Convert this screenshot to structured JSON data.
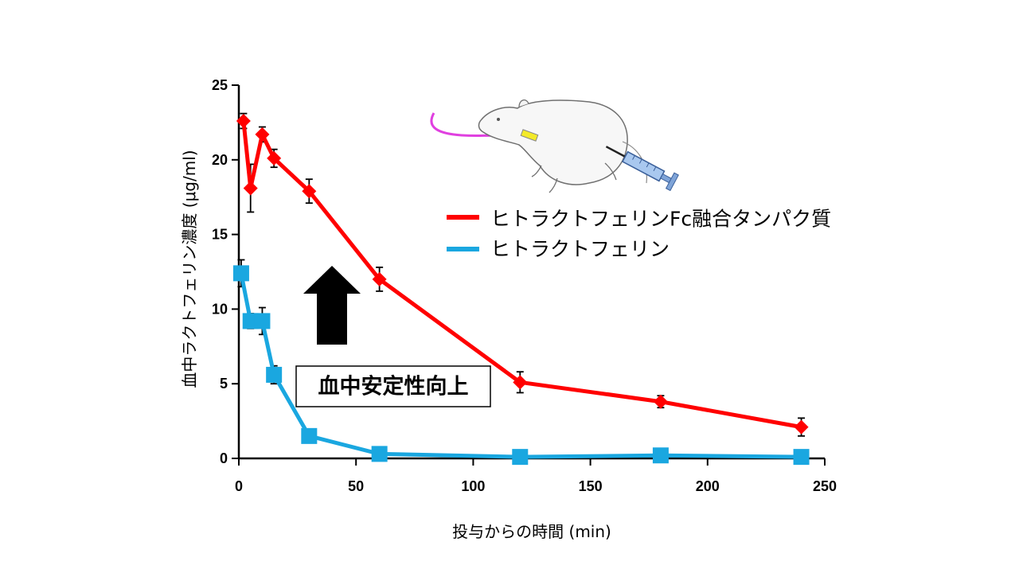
{
  "chart_data": {
    "type": "line",
    "xlabel": "投与からの時間 (min)",
    "ylabel": "血中ラクトフェリン濃度 (μg/ml)",
    "xlim": [
      0,
      250
    ],
    "ylim": [
      0,
      25
    ],
    "xticks": [
      0,
      50,
      100,
      150,
      200,
      250
    ],
    "yticks": [
      0,
      5,
      10,
      15,
      20,
      25
    ],
    "grid": false,
    "legend_position": "right",
    "series": [
      {
        "name": "ヒトラクトフェリンFc融合タンパク質",
        "color": "#ff0000",
        "marker": "diamond",
        "x": [
          2,
          5,
          10,
          15,
          30,
          60,
          120,
          180,
          240
        ],
        "y": [
          22.6,
          18.1,
          21.7,
          20.1,
          17.9,
          12.0,
          5.1,
          3.8,
          2.1
        ],
        "error": [
          0.5,
          1.6,
          0.5,
          0.6,
          0.8,
          0.8,
          0.7,
          0.4,
          0.6
        ]
      },
      {
        "name": "ヒトラクトフェリン",
        "color": "#1aa7e0",
        "marker": "square",
        "x": [
          1,
          5,
          10,
          15,
          30,
          60,
          120,
          180,
          240
        ],
        "y": [
          12.4,
          9.2,
          9.2,
          5.6,
          1.5,
          0.3,
          0.1,
          0.2,
          0.1
        ],
        "error": [
          0.9,
          0.5,
          0.9,
          0.6,
          0.1,
          0.1,
          0.1,
          0.1,
          0.1
        ]
      }
    ],
    "annotation": "血中安定性向上"
  },
  "illustration": {
    "icons": [
      "rat-icon",
      "syringe-icon",
      "catheter-icon"
    ]
  }
}
